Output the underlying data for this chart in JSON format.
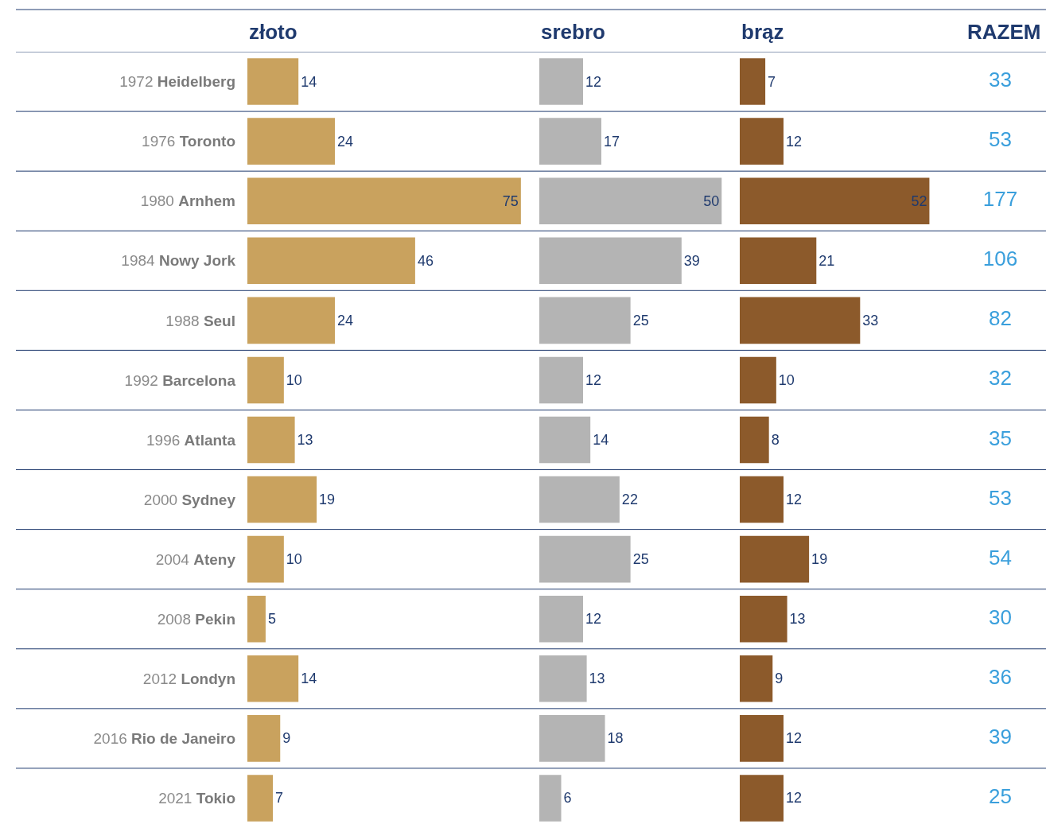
{
  "chart_data": [
    {
      "type": "bar",
      "orientation": "horizontal",
      "title": "złoto",
      "categories": [
        "1972 Heidelberg",
        "1976 Toronto",
        "1980 Arnhem",
        "1984 Nowy Jork",
        "1988 Seul",
        "1992 Barcelona",
        "1996 Atlanta",
        "2000 Sydney",
        "2004 Ateny",
        "2008 Pekin",
        "2012 Londyn",
        "2016 Rio de Janeiro",
        "2021 Tokio"
      ],
      "values": [
        14,
        24,
        75,
        46,
        24,
        10,
        13,
        19,
        10,
        5,
        14,
        9,
        7
      ],
      "color": "#c9a25e",
      "data_labels": true,
      "tick_labels": "y"
    },
    {
      "type": "bar",
      "orientation": "horizontal",
      "title": "srebro",
      "values": [
        12,
        17,
        50,
        39,
        25,
        12,
        14,
        22,
        25,
        12,
        13,
        18,
        6
      ],
      "color": "#b4b4b4",
      "data_labels": true,
      "tick_labels": false
    },
    {
      "type": "bar",
      "orientation": "horizontal",
      "title": "brąz",
      "values": [
        7,
        12,
        52,
        21,
        33,
        10,
        8,
        12,
        19,
        13,
        9,
        12,
        12
      ],
      "color": "#8c5a2b",
      "data_labels": true,
      "tick_labels": false
    },
    {
      "type": "other",
      "title": "RAZEM",
      "values": [
        33,
        53,
        177,
        106,
        82,
        32,
        35,
        53,
        54,
        30,
        36,
        39,
        25
      ],
      "color": "#3a9fdc",
      "data_labels": true
    }
  ]
}
